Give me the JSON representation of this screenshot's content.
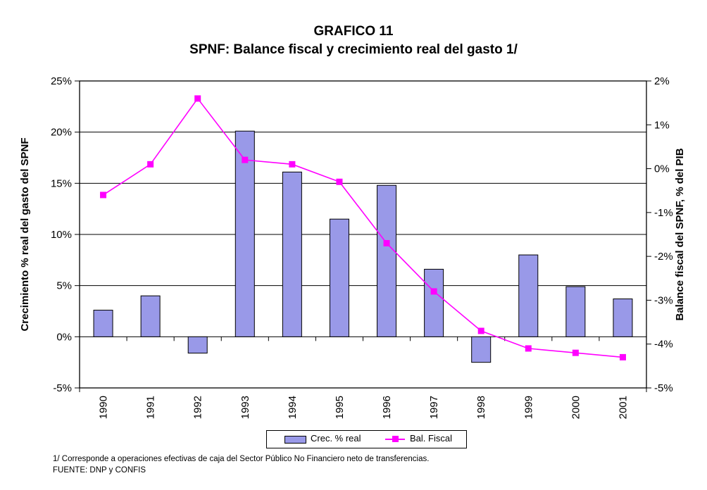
{
  "title": "GRAFICO 11",
  "subtitle": "SPNF: Balance fiscal y crecimiento real del gasto 1/",
  "footnotes": {
    "note1": "1/ Corresponde a operaciones efectivas de caja del Sector Público No Financiero neto de transferencias.",
    "note2": "FUENTE: DNP y CONFIS"
  },
  "legend": {
    "bar_label": "Crec. % real",
    "line_label": "Bal. Fiscal"
  },
  "colors": {
    "bar_fill": "#9999E8",
    "bar_border": "#000000",
    "line": "#FF00FF",
    "marker": "#FF00FF",
    "axis": "#000000",
    "background": "#FFFFFF"
  },
  "chart_data": {
    "type": "bar+line combo, dual y-axes",
    "categories": [
      "1990",
      "1991",
      "1992",
      "1993",
      "1994",
      "1995",
      "1996",
      "1997",
      "1998",
      "1999",
      "2000",
      "2001"
    ],
    "series": [
      {
        "name": "Crec. % real",
        "type": "bar",
        "axis": "left",
        "values": [
          2.6,
          4.0,
          -1.6,
          20.1,
          16.1,
          11.5,
          14.8,
          6.6,
          -2.5,
          8.0,
          4.9,
          3.7
        ]
      },
      {
        "name": "Bal. Fiscal",
        "type": "line",
        "axis": "right",
        "values": [
          -0.6,
          0.1,
          1.6,
          0.2,
          0.1,
          -0.3,
          -1.7,
          -2.8,
          -3.7,
          -4.1,
          -4.2,
          -4.3
        ]
      }
    ],
    "left_axis": {
      "label": "Crecimiento % real del gasto del SPNF",
      "min": -5,
      "max": 25,
      "ticks": [
        {
          "value": 25,
          "label": "25%"
        },
        {
          "value": 20,
          "label": "20%"
        },
        {
          "value": 15,
          "label": "15%"
        },
        {
          "value": 10,
          "label": "10%"
        },
        {
          "value": 5,
          "label": "5%"
        },
        {
          "value": 0,
          "label": "0%"
        },
        {
          "value": -5,
          "label": "-5%"
        }
      ]
    },
    "right_axis": {
      "label": "Balance fiscal del SPNF, % del PIB",
      "min": -5,
      "max": 2,
      "ticks": [
        {
          "value": 2,
          "label": "2%"
        },
        {
          "value": 1,
          "label": "1%"
        },
        {
          "value": 0,
          "label": "0%"
        },
        {
          "value": -1,
          "label": "-1%"
        },
        {
          "value": -2,
          "label": "-2%"
        },
        {
          "value": -3,
          "label": "-3%"
        },
        {
          "value": -4,
          "label": "-4%"
        },
        {
          "value": -5,
          "label": "-5%"
        }
      ]
    },
    "grid": "horizontal gridlines at left-axis ticks",
    "legend_position": "bottom-center"
  }
}
